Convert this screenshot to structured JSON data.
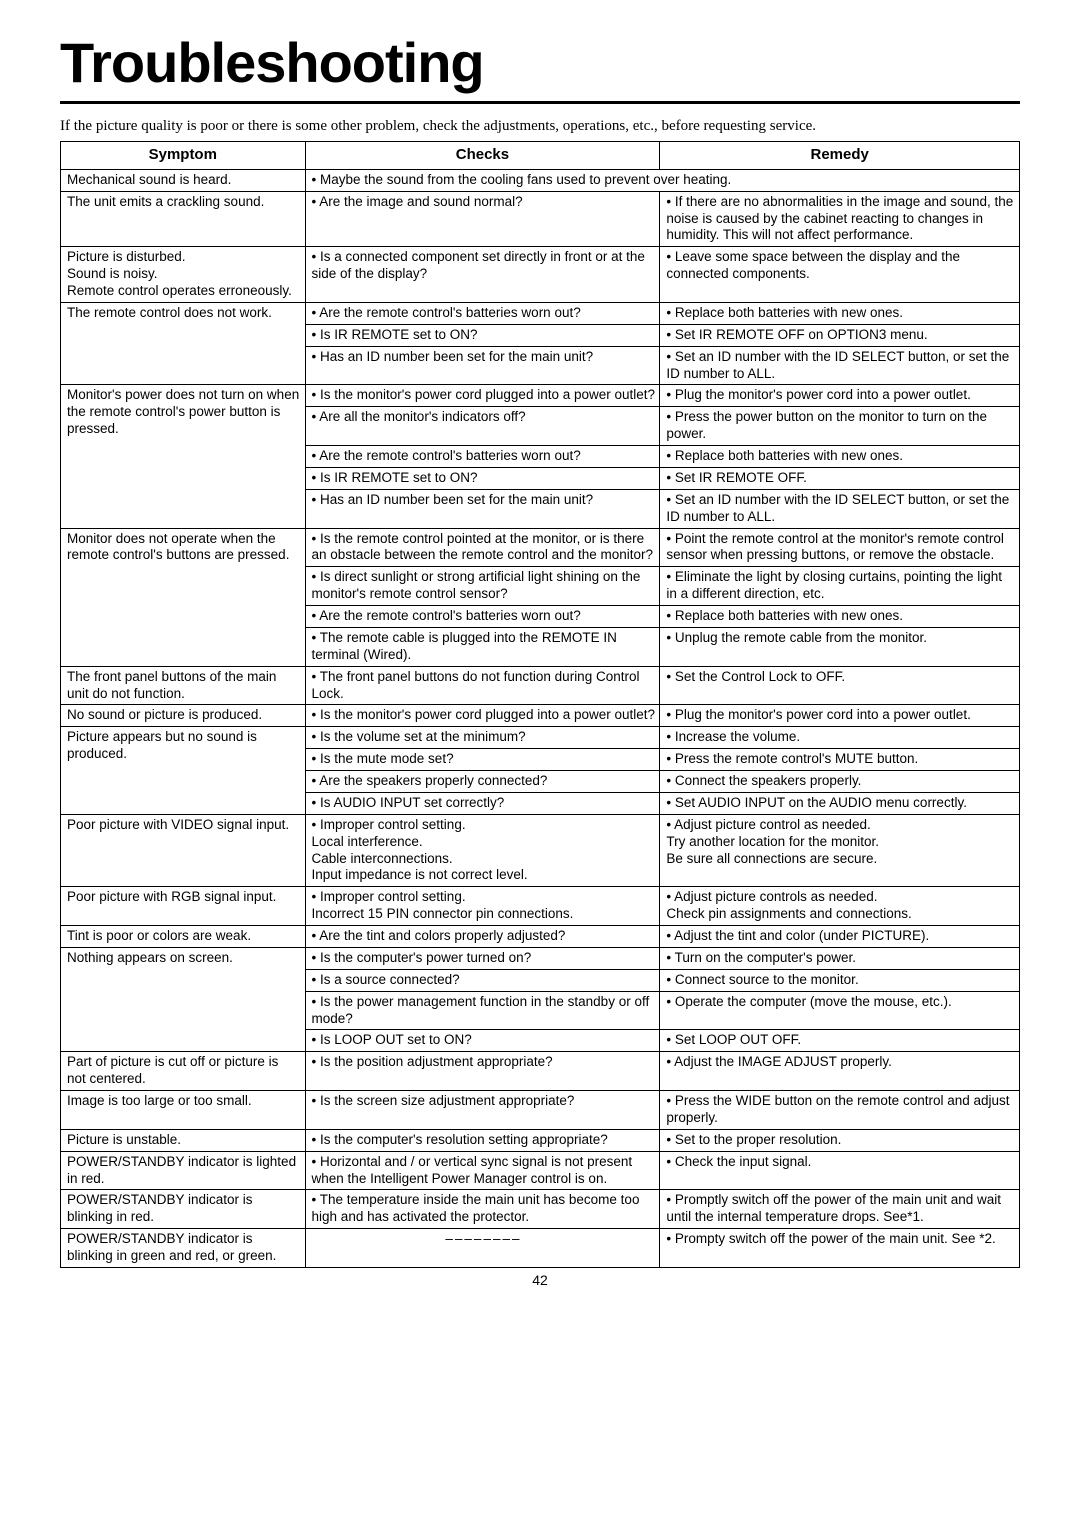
{
  "title": "Troubleshooting",
  "intro": "If the picture quality is poor or there is some other problem, check the adjustments, operations, etc., before requesting service.",
  "headers": {
    "h1": "Symptom",
    "h2": "Checks",
    "h3": "Remedy"
  },
  "pagenum": "42",
  "colwidths": {
    "c1": "25.5%",
    "c2": "37%",
    "c3": "37.5%"
  },
  "rows": [
    {
      "s": "Mechanical sound is heard.",
      "c": "• Maybe the sound from the cooling fans used to prevent over heating.",
      "cspan": 2
    },
    {
      "s": "The unit emits a crackling sound.",
      "c": "• Are the image and sound normal?",
      "r": "• If there are no abnormalities in the image and sound, the noise is caused by the cabinet reacting to changes in humidity. This will not affect performance."
    },
    {
      "s": "Picture is disturbed.\nSound is noisy.\nRemote control operates erroneously.",
      "c": "• Is a connected component set directly in front or at the side of the display?",
      "r": "• Leave some space between the display and the connected components."
    },
    {
      "s": "The remote control does not work.",
      "srow": 3,
      "c": "• Are the remote control's batteries worn out?",
      "r": "• Replace both batteries with new ones."
    },
    {
      "c": "• Is IR REMOTE set to ON?",
      "r": "• Set IR REMOTE OFF on OPTION3 menu."
    },
    {
      "c": "• Has an ID number been set for the main unit?",
      "r": "• Set an ID number with the ID SELECT button, or set the ID number to ALL."
    },
    {
      "s": "Monitor's power does not turn on when the remote control's power button is pressed.",
      "srow": 5,
      "c": "• Is the monitor's power cord plugged into a power outlet?",
      "r": "• Plug the monitor's power cord into a power outlet."
    },
    {
      "c": "• Are all the monitor's indicators off?",
      "r": "• Press the power button on the monitor to turn on the power."
    },
    {
      "c": "• Are the remote control's batteries worn out?",
      "r": "• Replace both batteries with new ones."
    },
    {
      "c": "• Is IR REMOTE set to ON?",
      "r": "• Set IR REMOTE OFF."
    },
    {
      "c": "• Has an ID number been set for the main unit?",
      "r": "• Set an ID number with the ID SELECT button, or set the ID number to ALL."
    },
    {
      "s": "Monitor does not operate when the remote control's buttons are pressed.",
      "srow": 4,
      "c": "• Is the remote control pointed at the monitor, or is there an obstacle between the remote control and the monitor?",
      "r": "• Point the remote control at the monitor's remote control sensor when pressing buttons, or remove the obstacle."
    },
    {
      "c": "• Is direct sunlight or strong artificial light shining on the monitor's remote control sensor?",
      "r": "• Eliminate the light by closing curtains, pointing the light in a different direction, etc."
    },
    {
      "c": "• Are the remote control's batteries worn out?",
      "r": "• Replace both batteries with new ones."
    },
    {
      "c": "• The remote cable is plugged into the REMOTE IN terminal (Wired).",
      "r": "• Unplug the remote cable from the monitor."
    },
    {
      "s": "The front panel buttons of the main unit do not function.",
      "c": "• The front panel buttons do not function during Control Lock.",
      "r": "• Set the Control Lock to OFF."
    },
    {
      "s": "No sound or picture is produced.",
      "c": "• Is the monitor's power cord plugged into a power outlet?",
      "r": "• Plug the monitor's power cord into a power outlet."
    },
    {
      "s": "Picture appears but no sound is produced.",
      "srow": 4,
      "c": "• Is the volume set at the minimum?",
      "r": "• Increase the volume."
    },
    {
      "c": "• Is the mute mode set?",
      "r": "• Press the remote control's MUTE button."
    },
    {
      "c": "• Are the speakers properly connected?",
      "r": "• Connect the speakers properly."
    },
    {
      "c": "• Is AUDIO INPUT set correctly?",
      "r": "• Set AUDIO INPUT on the AUDIO menu correctly."
    },
    {
      "s": "Poor picture with VIDEO signal input.",
      "c": "• Improper control setting.\n  Local interference.\n  Cable interconnections.\n  Input impedance is not correct level.",
      "r": "• Adjust picture control as needed.\n  Try another location for the monitor.\n  Be sure all connections are secure."
    },
    {
      "s": "Poor picture with RGB signal input.",
      "c": "• Improper control setting.\n  Incorrect 15 PIN connector pin connections.",
      "r": "• Adjust picture controls as needed.\n  Check pin assignments and connections."
    },
    {
      "s": "Tint is poor or colors are weak.",
      "c": "• Are the tint and colors properly adjusted?",
      "r": "• Adjust the tint and color (under PICTURE)."
    },
    {
      "s": "Nothing appears on screen.",
      "srow": 4,
      "c": "• Is the computer's power turned on?",
      "r": "• Turn on the computer's power."
    },
    {
      "c": "• Is a source connected?",
      "r": "• Connect source to the monitor."
    },
    {
      "c": "• Is the power management function in the standby or off mode?",
      "r": "• Operate the computer (move the mouse, etc.)."
    },
    {
      "c": "• Is LOOP OUT set to ON?",
      "r": "• Set LOOP OUT OFF."
    },
    {
      "s": "Part of picture is cut off or picture is not centered.",
      "c": "• Is the position adjustment appropriate?",
      "r": "• Adjust the IMAGE ADJUST properly."
    },
    {
      "s": "Image is too large or too small.",
      "c": "• Is the screen size adjustment appropriate?",
      "r": "• Press the WIDE button on the remote control and adjust properly."
    },
    {
      "s": "Picture is unstable.",
      "c": "• Is the computer's resolution setting appropriate?",
      "r": "• Set to the proper resolution."
    },
    {
      "s": "POWER/STANDBY indicator is lighted in red.",
      "c": "• Horizontal and / or vertical sync signal is not present when the Intelligent Power Manager control is on.",
      "r": "• Check the input signal."
    },
    {
      "s": "POWER/STANDBY indicator is blinking in red.",
      "c": "• The temperature inside the main unit has become too high and has activated the protector.",
      "r": "• Promptly switch off the power of the main unit and wait until the internal temperature drops. See*1."
    },
    {
      "s": "POWER/STANDBY indicator is blinking in green and red, or green.",
      "c": "––––––––",
      "cclass": "dash",
      "r": "• Prompty switch off the power of the main unit. See *2."
    }
  ]
}
